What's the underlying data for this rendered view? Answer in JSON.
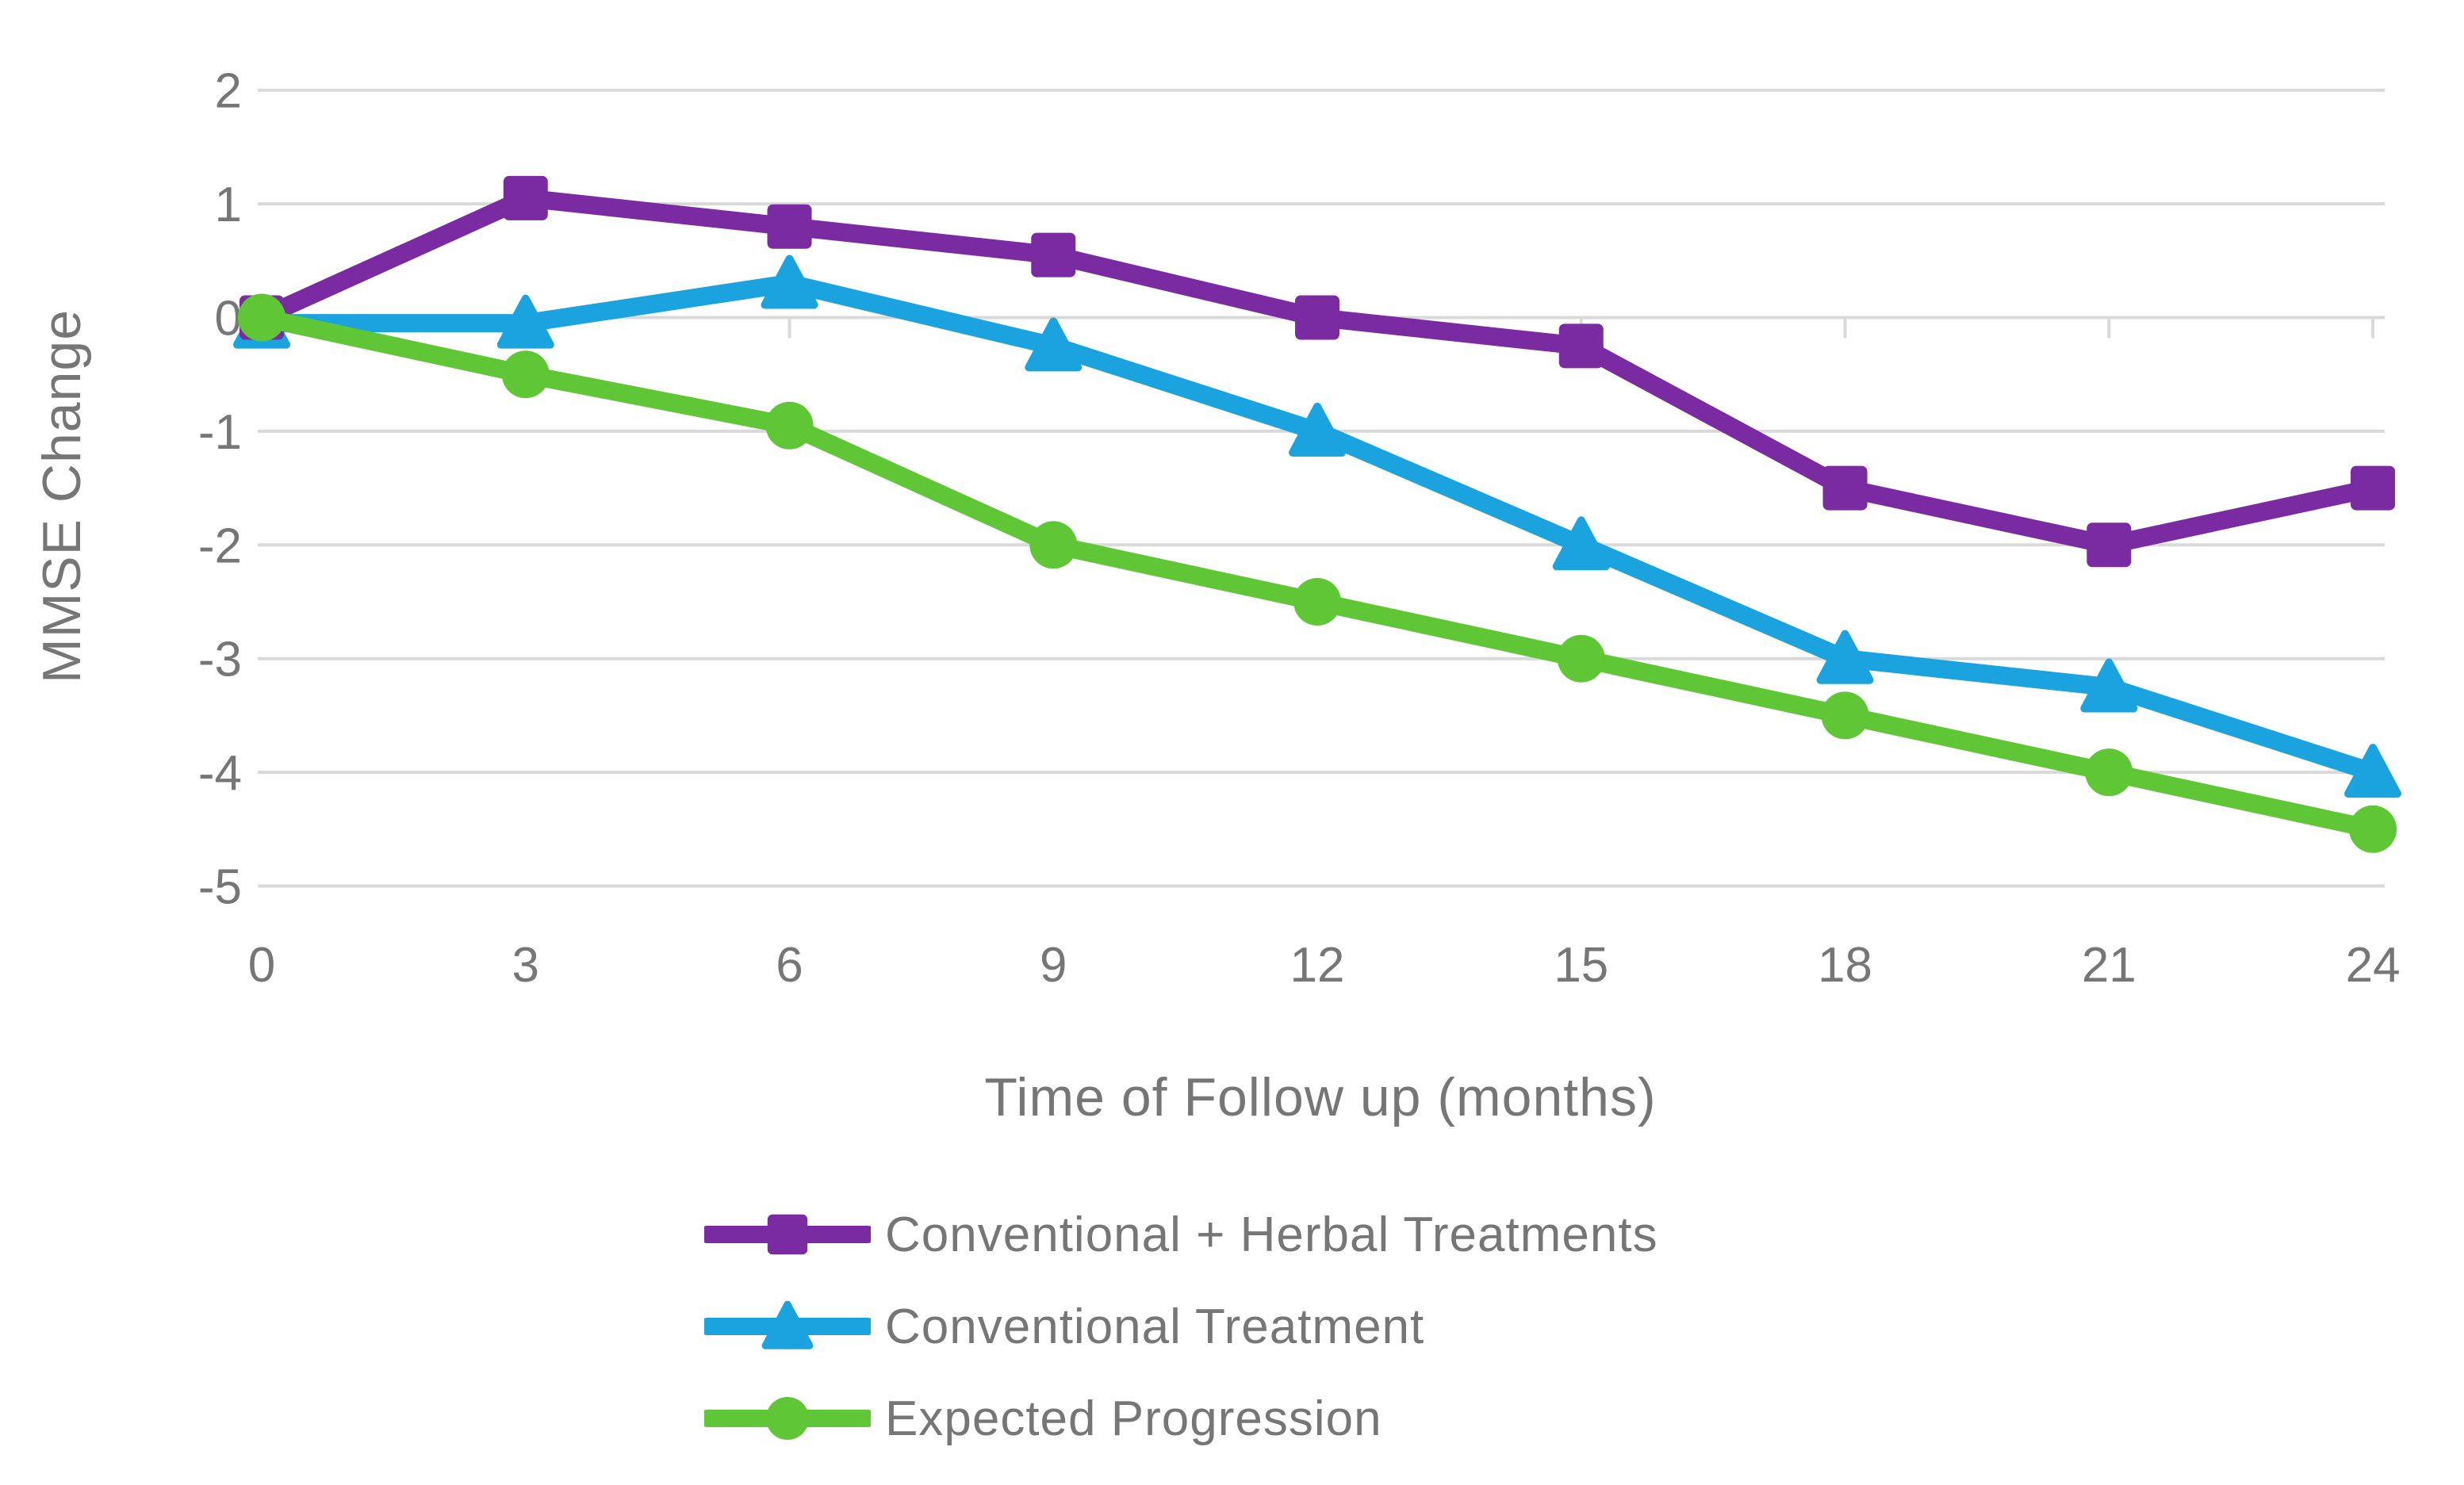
{
  "chart_data": {
    "type": "line",
    "title": "",
    "xlabel": "Time of Follow up (months)",
    "ylabel": "MMSE Change",
    "x": [
      0,
      3,
      6,
      9,
      12,
      15,
      18,
      21,
      24
    ],
    "x_tick_labels": [
      "0",
      "3",
      "6",
      "9",
      "12",
      "15",
      "18",
      "21",
      "24"
    ],
    "y_ticks": [
      2,
      1,
      0,
      -1,
      -2,
      -3,
      -4,
      -5
    ],
    "ylim": [
      -5.4,
      2.4
    ],
    "grid": "horizontal-only",
    "legend_position": "bottom-left",
    "series": [
      {
        "name": "Conventional + Herbal Treatments",
        "marker": "square",
        "color": "#7A2BA1",
        "values": [
          0,
          1.05,
          0.8,
          0.55,
          0,
          -0.25,
          -1.5,
          -2,
          -1.5
        ]
      },
      {
        "name": "Conventional Treatment",
        "marker": "triangle",
        "color": "#1BA3DF",
        "values": [
          -0.05,
          -0.05,
          0.3,
          -0.25,
          -1,
          -2,
          -3,
          -3.25,
          -4
        ]
      },
      {
        "name": "Expected Progression",
        "marker": "circle",
        "color": "#5FC636",
        "values": [
          0,
          -0.5,
          -0.95,
          -2,
          -2.5,
          -3,
          -3.5,
          -4,
          -4.5
        ]
      }
    ]
  },
  "styles": {
    "text_color": "#767676",
    "gridline_color": "#D9D9D9",
    "axis_tick_color": "#D9D9D9",
    "background": "#FFFFFF"
  }
}
